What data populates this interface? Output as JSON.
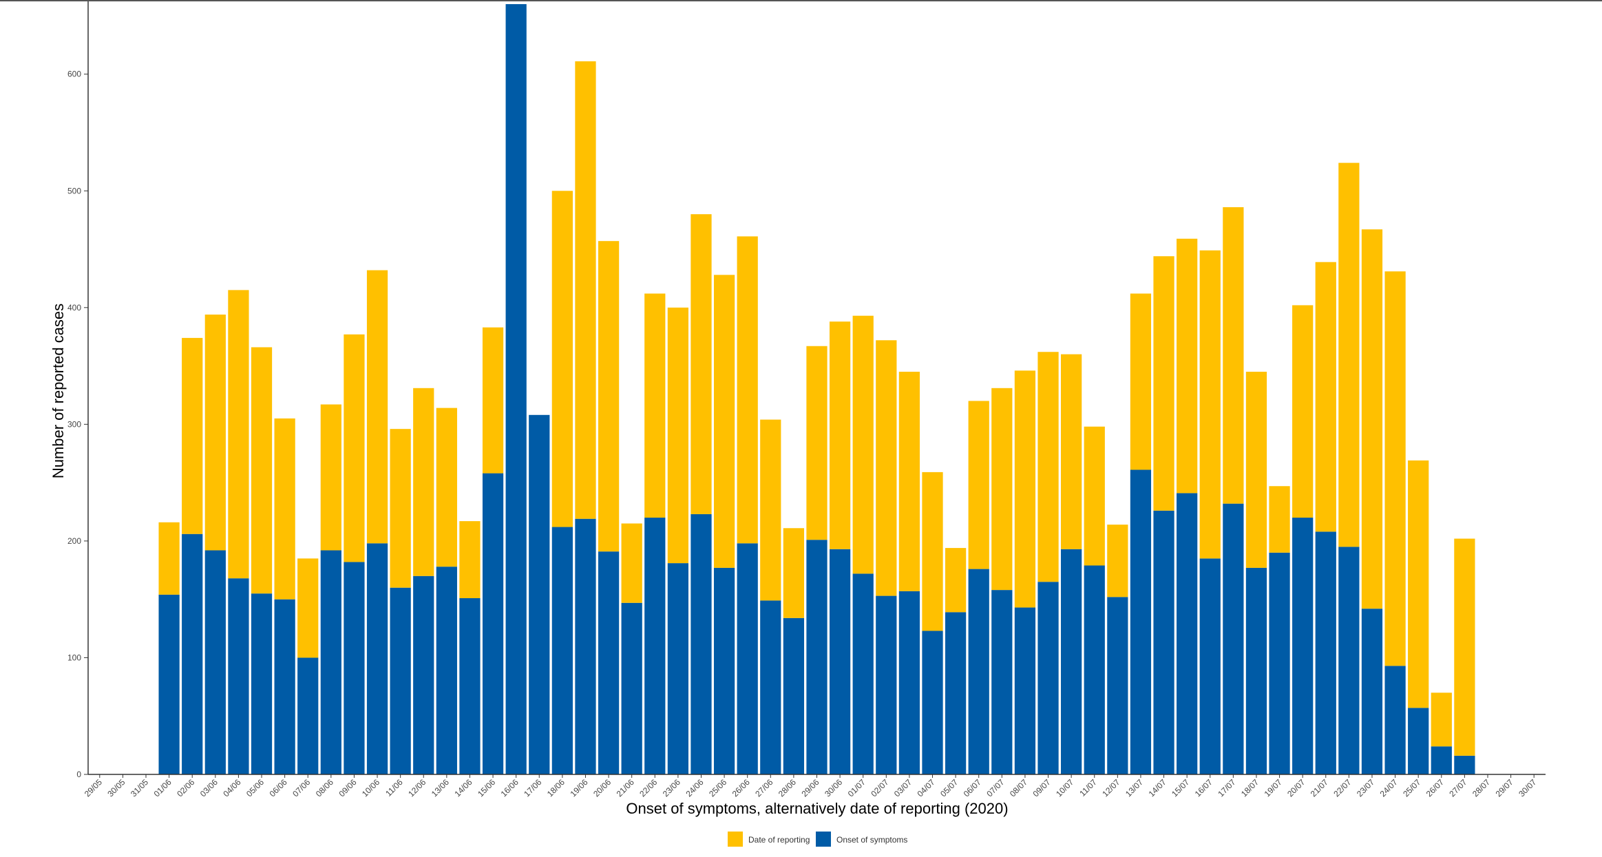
{
  "chart_data": {
    "type": "bar",
    "stacked": true,
    "title": "",
    "xlabel": "Onset of symptoms, alternatively date of reporting (2020)",
    "ylabel": "Number of reported cases",
    "ylim": [
      0,
      660
    ],
    "yticks": [
      0,
      100,
      200,
      300,
      400,
      500,
      600
    ],
    "grid": false,
    "legend_position": "bottom",
    "categories": [
      "29/05",
      "30/05",
      "31/05",
      "01/06",
      "02/06",
      "03/06",
      "04/06",
      "05/06",
      "06/06",
      "07/06",
      "08/06",
      "09/06",
      "10/06",
      "11/06",
      "12/06",
      "13/06",
      "14/06",
      "15/06",
      "16/06",
      "17/06",
      "18/06",
      "19/06",
      "20/06",
      "21/06",
      "22/06",
      "23/06",
      "24/06",
      "25/06",
      "26/06",
      "27/06",
      "28/06",
      "29/06",
      "30/06",
      "01/07",
      "02/07",
      "03/07",
      "04/07",
      "05/07",
      "06/07",
      "07/07",
      "08/07",
      "09/07",
      "10/07",
      "11/07",
      "12/07",
      "13/07",
      "14/07",
      "15/07",
      "16/07",
      "17/07",
      "18/07",
      "19/07",
      "20/07",
      "21/07",
      "22/07",
      "23/07",
      "24/07",
      "25/07",
      "26/07",
      "27/07",
      "28/07",
      "29/07",
      "30/07"
    ],
    "series": [
      {
        "name": "Onset of symptoms",
        "color": "#005BA6",
        "values": [
          0,
          0,
          0,
          154,
          206,
          192,
          168,
          155,
          150,
          100,
          192,
          182,
          198,
          160,
          170,
          178,
          151,
          258,
          660,
          308,
          212,
          219,
          191,
          147,
          220,
          181,
          223,
          177,
          198,
          149,
          134,
          201,
          193,
          172,
          153,
          157,
          123,
          139,
          176,
          158,
          143,
          165,
          193,
          179,
          152,
          261,
          226,
          241,
          185,
          232,
          177,
          190,
          220,
          208,
          195,
          142,
          93,
          57,
          24,
          16,
          0,
          0,
          0
        ]
      },
      {
        "name": "Date of reporting",
        "color": "#FFC000",
        "values": [
          0,
          0,
          0,
          62,
          168,
          202,
          247,
          211,
          155,
          85,
          125,
          195,
          234,
          136,
          161,
          136,
          66,
          125,
          0,
          0,
          288,
          392,
          266,
          68,
          192,
          219,
          257,
          251,
          263,
          155,
          77,
          166,
          195,
          221,
          219,
          188,
          136,
          55,
          144,
          173,
          203,
          197,
          167,
          119,
          62,
          151,
          218,
          218,
          264,
          254,
          168,
          57,
          182,
          231,
          329,
          325,
          338,
          212,
          46,
          186,
          0,
          0,
          0
        ]
      }
    ]
  },
  "legend": {
    "items": [
      {
        "label": "Date of reporting",
        "color": "#FFC000"
      },
      {
        "label": "Onset of symptoms",
        "color": "#005BA6"
      }
    ]
  }
}
